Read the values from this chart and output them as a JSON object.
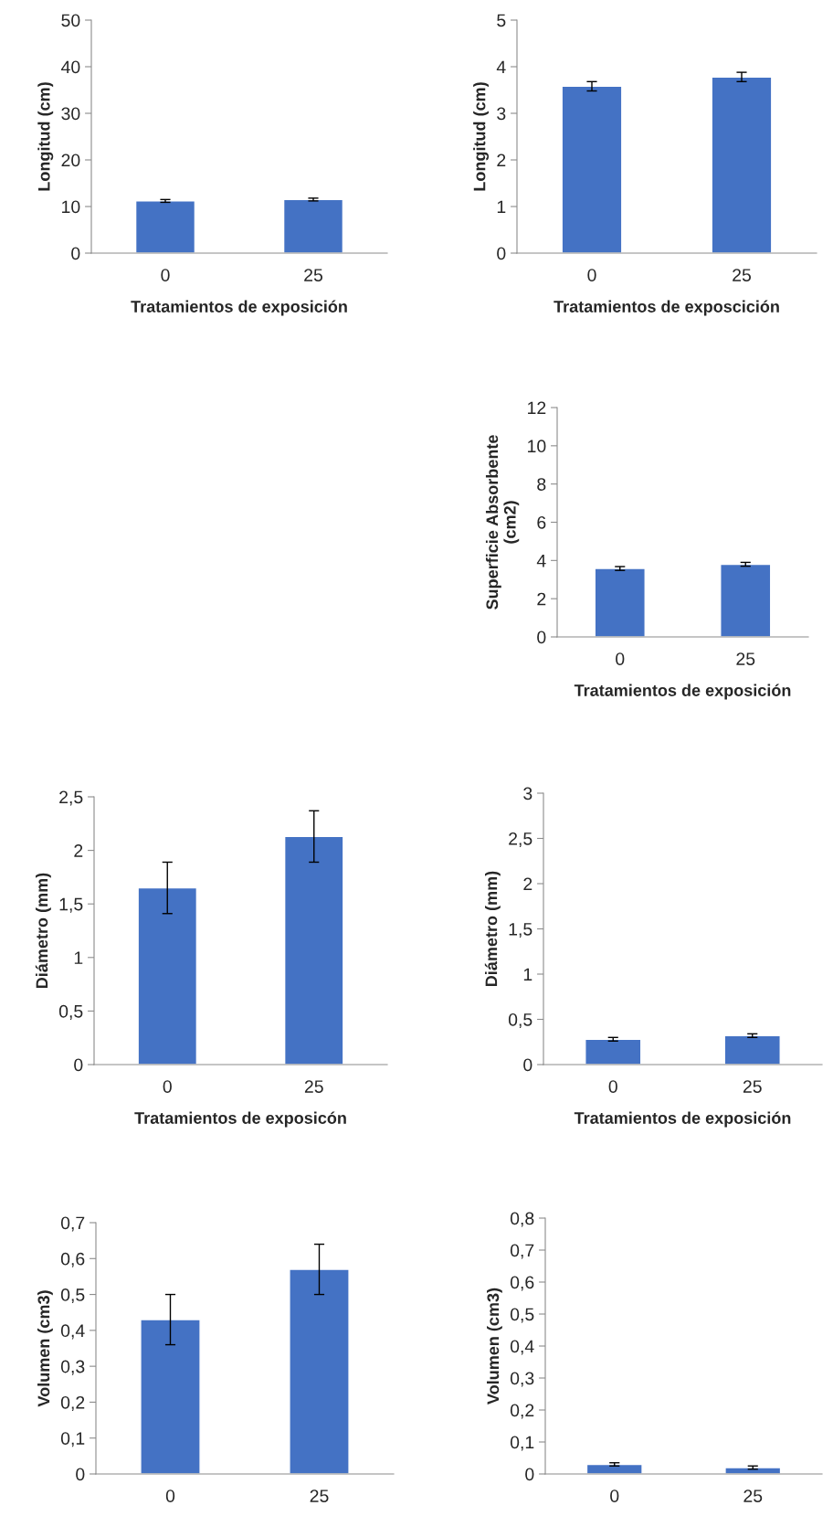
{
  "chart_data": [
    {
      "type": "bar",
      "categories": [
        "0",
        "25"
      ],
      "values": [
        11.2,
        11.5
      ],
      "errors": [
        0.3,
        0.3
      ],
      "color": "#4472c4",
      "ylim": [
        0,
        50
      ],
      "yticks": [
        0,
        10,
        20,
        30,
        40,
        50
      ],
      "ylabel": "Longitud (cm)",
      "xlabel": "Tratamientos de exposición"
    },
    {
      "type": "bar",
      "categories": [
        "0",
        "25"
      ],
      "values": [
        3.58,
        3.78
      ],
      "errors": [
        0.1,
        0.1
      ],
      "color": "#4472c4",
      "ylim": [
        0,
        5
      ],
      "yticks": [
        0,
        1,
        2,
        3,
        4,
        5
      ],
      "ylabel": "Longitud (cm)",
      "xlabel": "Tratamientos de exposcición"
    },
    {
      "type": "bar",
      "categories": [
        "0",
        "25"
      ],
      "values": [
        3.58,
        3.8
      ],
      "errors": [
        0.1,
        0.1
      ],
      "color": "#4472c4",
      "ylim": [
        0,
        12
      ],
      "yticks": [
        0,
        2,
        4,
        6,
        8,
        10,
        12
      ],
      "ylabel": "Superficie Absorbente\n(cm2)",
      "xlabel": "Tratamientos de exposición"
    },
    {
      "type": "bar",
      "categories": [
        "0",
        "25"
      ],
      "values": [
        1.65,
        2.13
      ],
      "errors": [
        0.24,
        0.24
      ],
      "color": "#4472c4",
      "ylim": [
        0,
        2.5
      ],
      "yticks": [
        0,
        {
          "value": 0.5,
          "label": "0,5"
        },
        1,
        {
          "value": 1.5,
          "label": "1,5"
        },
        2,
        {
          "value": 2.5,
          "label": "2,5"
        }
      ],
      "ylabel": "Diámetro (mm)",
      "xlabel": "Tratamientos de exposicón"
    },
    {
      "type": "bar",
      "categories": [
        "0",
        "25"
      ],
      "values": [
        0.28,
        0.32
      ],
      "errors": [
        0.02,
        0.02
      ],
      "color": "#4472c4",
      "ylim": [
        0,
        3
      ],
      "yticks": [
        0,
        {
          "value": 0.5,
          "label": "0,5"
        },
        1,
        {
          "value": 1.5,
          "label": "1,5"
        },
        2,
        {
          "value": 2.5,
          "label": "2,5"
        },
        3
      ],
      "ylabel": "Diámetro (mm)",
      "xlabel": "Tratamientos de exposición"
    },
    {
      "type": "bar",
      "categories": [
        "0",
        "25"
      ],
      "values": [
        0.43,
        0.57
      ],
      "errors": [
        0.07,
        0.07
      ],
      "color": "#4472c4",
      "ylim": [
        0,
        0.7
      ],
      "yticks": [
        0,
        {
          "value": 0.1,
          "label": "0,1"
        },
        {
          "value": 0.2,
          "label": "0,2"
        },
        {
          "value": 0.3,
          "label": "0,3"
        },
        {
          "value": 0.4,
          "label": "0,4"
        },
        {
          "value": 0.5,
          "label": "0,5"
        },
        {
          "value": 0.6,
          "label": "0,6"
        },
        {
          "value": 0.7,
          "label": "0,7"
        }
      ],
      "ylabel": "Volumen (cm3)"
    },
    {
      "type": "bar",
      "categories": [
        "0",
        "25"
      ],
      "values": [
        0.03,
        0.02
      ],
      "errors": [
        0.005,
        0.005
      ],
      "color": "#4472c4",
      "ylim": [
        0,
        0.8
      ],
      "yticks": [
        0,
        {
          "value": 0.1,
          "label": "0,1"
        },
        {
          "value": 0.2,
          "label": "0,2"
        },
        {
          "value": 0.3,
          "label": "0,3"
        },
        {
          "value": 0.4,
          "label": "0,4"
        },
        {
          "value": 0.5,
          "label": "0,5"
        },
        {
          "value": 0.6,
          "label": "0,6"
        },
        {
          "value": 0.7,
          "label": "0,7"
        },
        {
          "value": 0.8,
          "label": "0,8"
        }
      ],
      "ylabel": "Volumen (cm3)"
    }
  ]
}
